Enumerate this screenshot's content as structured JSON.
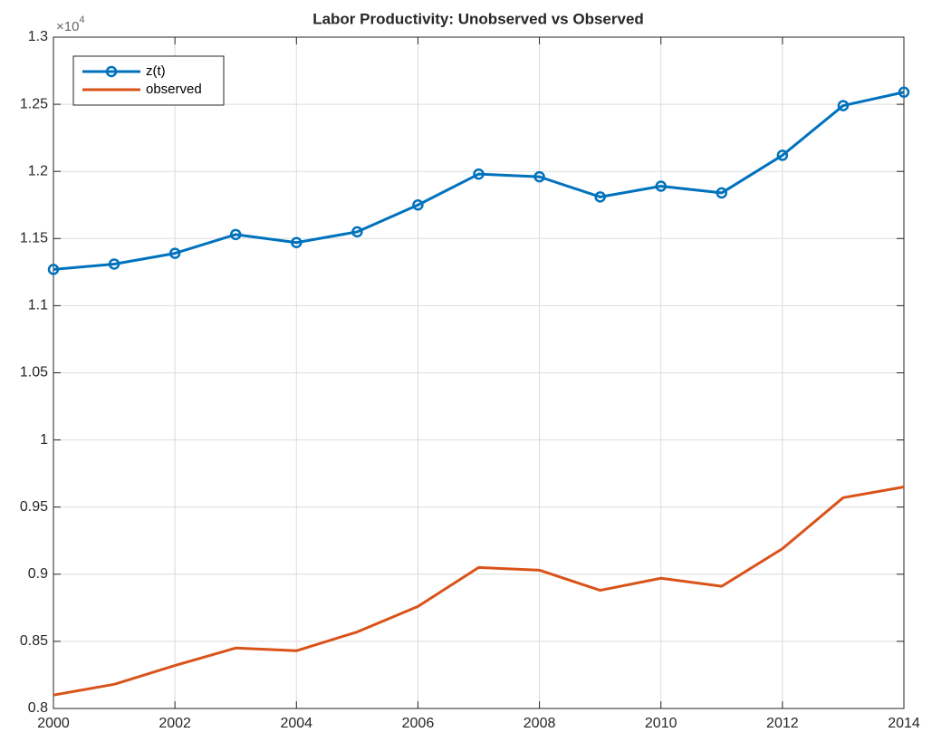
{
  "chart_data": {
    "type": "line",
    "title": "Labor Productivity: Unobserved vs Observed",
    "y_multiplier": {
      "base": "×10",
      "exponent": "4"
    },
    "x": [
      2000,
      2001,
      2002,
      2003,
      2004,
      2005,
      2006,
      2007,
      2008,
      2009,
      2010,
      2011,
      2012,
      2013,
      2014
    ],
    "series": [
      {
        "name": "z(t)",
        "color": "#0072BD",
        "marker": "o",
        "values": [
          1.127,
          1.131,
          1.139,
          1.153,
          1.147,
          1.155,
          1.175,
          1.198,
          1.196,
          1.181,
          1.189,
          1.184,
          1.212,
          1.249,
          1.259
        ]
      },
      {
        "name": "observed",
        "color": "#D95319",
        "values": [
          0.81,
          0.818,
          0.832,
          0.845,
          0.843,
          0.857,
          0.876,
          0.905,
          0.903,
          0.888,
          0.897,
          0.891,
          0.919,
          0.957,
          0.965
        ]
      }
    ],
    "xlim": [
      2000,
      2014
    ],
    "xticks": [
      2000,
      2002,
      2004,
      2006,
      2008,
      2010,
      2012,
      2014
    ],
    "ylim": [
      0.8,
      1.3
    ],
    "yticks": [
      0.8,
      0.85,
      0.9,
      0.95,
      1,
      1.05,
      1.1,
      1.15,
      1.2,
      1.25,
      1.3
    ],
    "grid": true,
    "legend": "northwest"
  }
}
